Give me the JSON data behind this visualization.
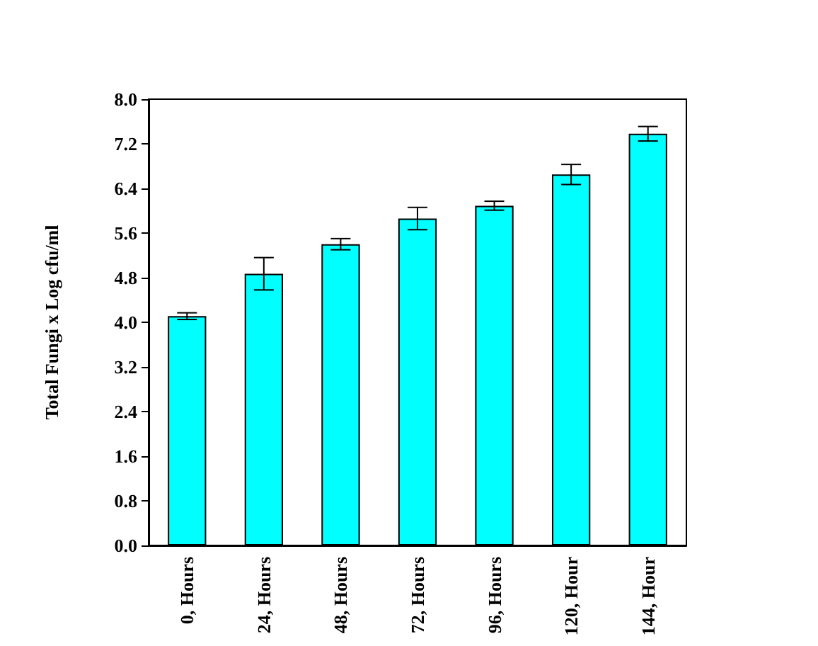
{
  "chart_data": {
    "type": "bar",
    "ylabel": "Total Fungi x Log cfu/ml",
    "categories": [
      "0, Hours",
      "24, Hours",
      "48, Hours",
      "72, Hours",
      "96, Hours",
      "120, Hour",
      "144, Hour"
    ],
    "values": [
      4.11,
      4.87,
      5.4,
      5.86,
      6.09,
      6.65,
      7.38
    ],
    "errors": [
      0.06,
      0.29,
      0.1,
      0.2,
      0.08,
      0.18,
      0.13
    ],
    "color": "#00ffff",
    "ylim": [
      0,
      8
    ],
    "yticks": [
      {
        "value": 0,
        "label": "0.0"
      },
      {
        "value": 0.8,
        "label": "0.8"
      },
      {
        "value": 1.6,
        "label": "1.6"
      },
      {
        "value": 2.4,
        "label": "2.4"
      },
      {
        "value": 3.2,
        "label": "3.2"
      },
      {
        "value": 4,
        "label": "4.0"
      },
      {
        "value": 4.8,
        "label": "4.8"
      },
      {
        "value": 5.6,
        "label": "5.6"
      },
      {
        "value": 6.4,
        "label": "6.4"
      },
      {
        "value": 7.2,
        "label": "7.2"
      },
      {
        "value": 8,
        "label": "8.0"
      }
    ],
    "grid": false
  }
}
